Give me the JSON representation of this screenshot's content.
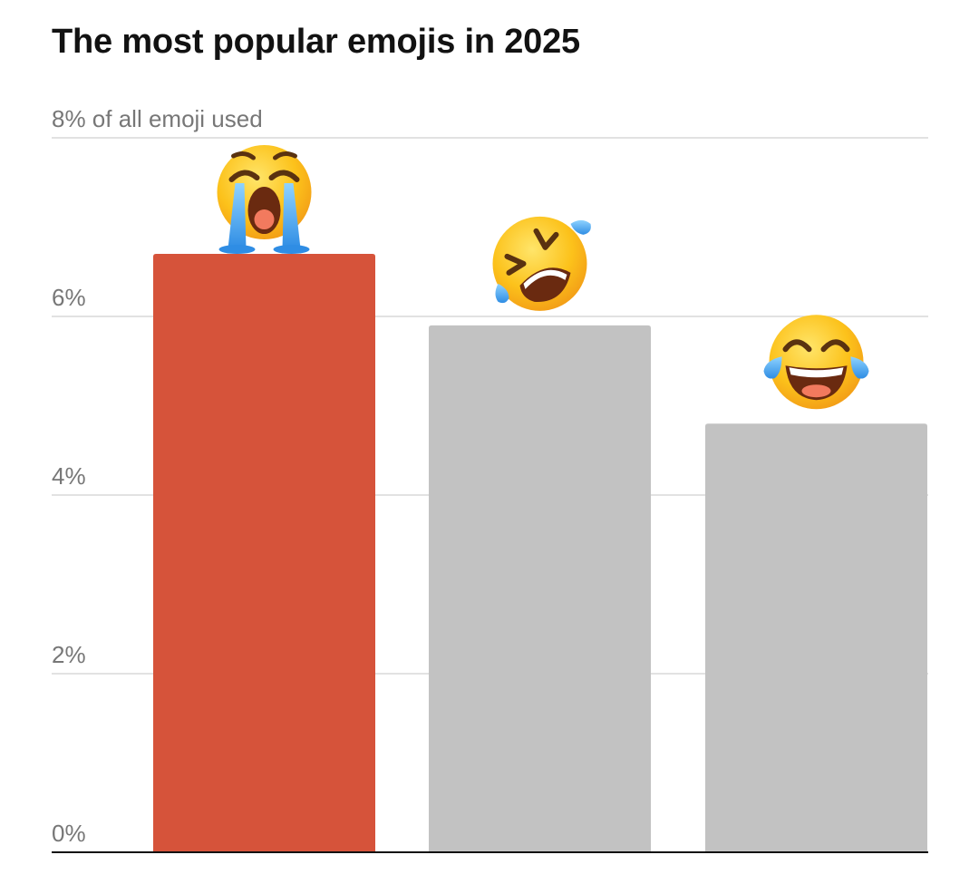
{
  "chart_data": {
    "type": "bar",
    "title": "The most popular emojis in 2025",
    "xlabel": "",
    "ylabel": "",
    "ylim": [
      0,
      8
    ],
    "yticks": [
      {
        "value": 0,
        "label": "0%"
      },
      {
        "value": 2,
        "label": "2%"
      },
      {
        "value": 4,
        "label": "4%"
      },
      {
        "value": 6,
        "label": "6%"
      },
      {
        "value": 8,
        "label": "8% of all emoji used"
      }
    ],
    "grid": true,
    "categories": [
      "loudly-crying-face",
      "rolling-on-the-floor-laughing",
      "face-with-tears-of-joy"
    ],
    "values": [
      6.7,
      5.9,
      4.8
    ],
    "bar_colors": [
      "#d6533a",
      "#c2c2c2",
      "#c2c2c2"
    ]
  }
}
